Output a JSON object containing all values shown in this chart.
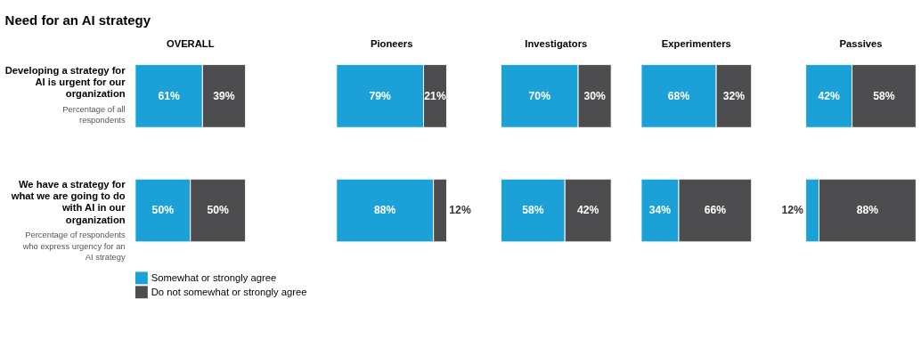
{
  "chart_data": [
    {
      "type": "bar",
      "orientation": "horizontal",
      "stacked": true,
      "title": "OVERALL",
      "legend": "bottom",
      "categories": [
        "Developing a strategy for AI is urgent for our organization",
        "We have a strategy for what we are going to do with AI in our organization"
      ],
      "annotations": [
        "Need for an AI strategy",
        "Percentage of all respondents",
        "Percentage of respondents who express urgency for an AI strategy"
      ],
      "series": [
        {
          "name": "Somewhat or strongly agree",
          "color": "#1ba1d8",
          "values": [
            61,
            50
          ],
          "value_labels": [
            "61%",
            "50%"
          ]
        },
        {
          "name": "Do not somewhat or strongly agree",
          "color": "#4d4d4f",
          "values": [
            39,
            50
          ],
          "value_labels": [
            "39%",
            "50%"
          ]
        }
      ]
    },
    {
      "type": "bar",
      "orientation": "horizontal",
      "stacked": true,
      "title": "Pioneers",
      "tick_labels": false,
      "categories": [
        null,
        null
      ],
      "series": [
        {
          "color": "#1ba1d8",
          "values": [
            79,
            88
          ],
          "value_labels": [
            "79%",
            "88%"
          ]
        },
        {
          "color": "#4d4d4f",
          "values": [
            21,
            12
          ],
          "value_labels": [
            "21%",
            "12%"
          ]
        }
      ]
    },
    {
      "type": "bar",
      "orientation": "horizontal",
      "stacked": true,
      "title": "Investigators",
      "tick_labels": false,
      "categories": [
        null,
        null
      ],
      "series": [
        {
          "color": "#1ba1d8",
          "values": [
            70,
            58
          ],
          "value_labels": [
            "70%",
            "58%"
          ]
        },
        {
          "color": "#4d4d4f",
          "values": [
            30,
            42
          ],
          "value_labels": [
            "30%",
            "42%"
          ]
        }
      ]
    },
    {
      "type": "bar",
      "orientation": "horizontal",
      "stacked": true,
      "title": "Experimenters",
      "tick_labels": false,
      "categories": [
        null,
        null
      ],
      "series": [
        {
          "color": "#1ba1d8",
          "values": [
            68,
            34
          ],
          "value_labels": [
            "68%",
            "34%"
          ]
        },
        {
          "color": "#4d4d4f",
          "values": [
            32,
            66
          ],
          "value_labels": [
            "32%",
            "66%"
          ]
        }
      ]
    },
    {
      "type": "bar",
      "orientation": "horizontal",
      "stacked": true,
      "title": "Passives",
      "tick_labels": false,
      "categories": [
        null,
        null
      ],
      "series": [
        {
          "color": "#1ba1d8",
          "values": [
            42,
            12
          ],
          "value_labels": [
            "42%",
            "12%"
          ]
        },
        {
          "color": "#4d4d4f",
          "values": [
            58,
            88
          ],
          "value_labels": [
            "58%",
            "88%"
          ]
        }
      ]
    }
  ]
}
